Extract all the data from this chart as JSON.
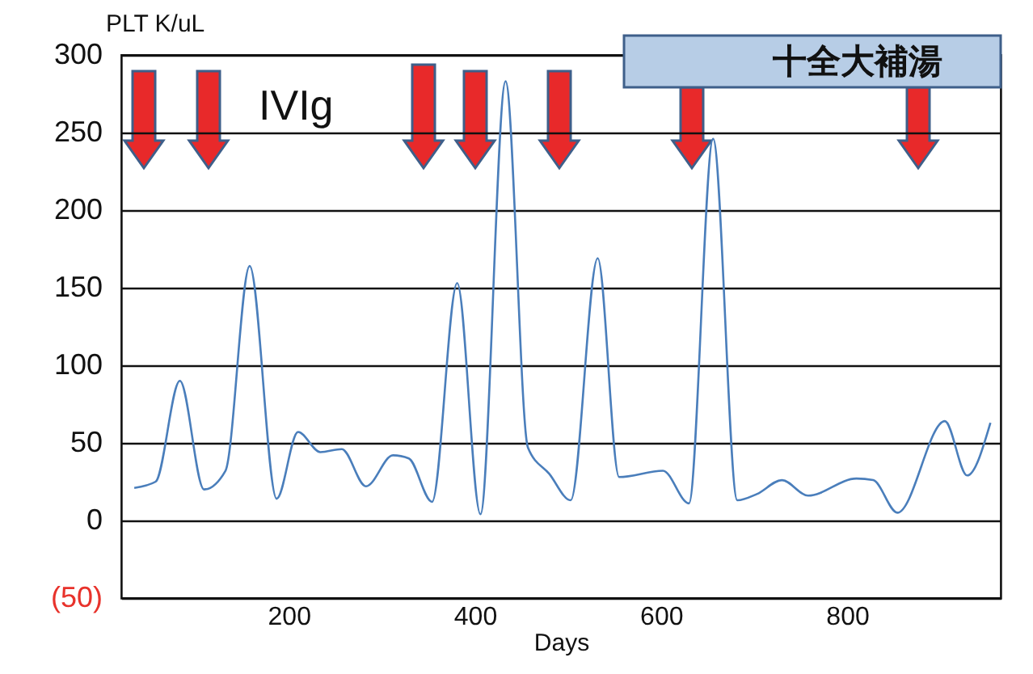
{
  "chart_data": {
    "type": "line",
    "xlabel": "Days",
    "ylabel": "PLT K/uL",
    "annotations": [
      "IVIg",
      "十全大補湯"
    ],
    "x": [
      34,
      57,
      83,
      109,
      132,
      158,
      187,
      210,
      234,
      257,
      283,
      312,
      329,
      354,
      381,
      406,
      433,
      457,
      480,
      503,
      532,
      555,
      602,
      630,
      656,
      682,
      703,
      730,
      758,
      810,
      828,
      854,
      905,
      929,
      954
    ],
    "series": [
      {
        "color": "#4a7ebb",
        "values": [
          21,
          25,
          90,
          20,
          32,
          164,
          14,
          57,
          44,
          46,
          22,
          42,
          40,
          12,
          153,
          4,
          283,
          47,
          30,
          13,
          169,
          28,
          32,
          11,
          246,
          13,
          17,
          26,
          16,
          27,
          26,
          5,
          64,
          29,
          63
        ]
      }
    ],
    "xlim": [
      20,
      965
    ],
    "xticks": [
      200,
      400,
      600,
      800
    ],
    "ylim": [
      -50,
      300
    ],
    "yticks": [
      {
        "value": -50,
        "label": "(50)"
      },
      0,
      50,
      100,
      150,
      200,
      250,
      300
    ],
    "grid": "y",
    "legend": false,
    "marker": "none",
    "line_style": "solid"
  }
}
